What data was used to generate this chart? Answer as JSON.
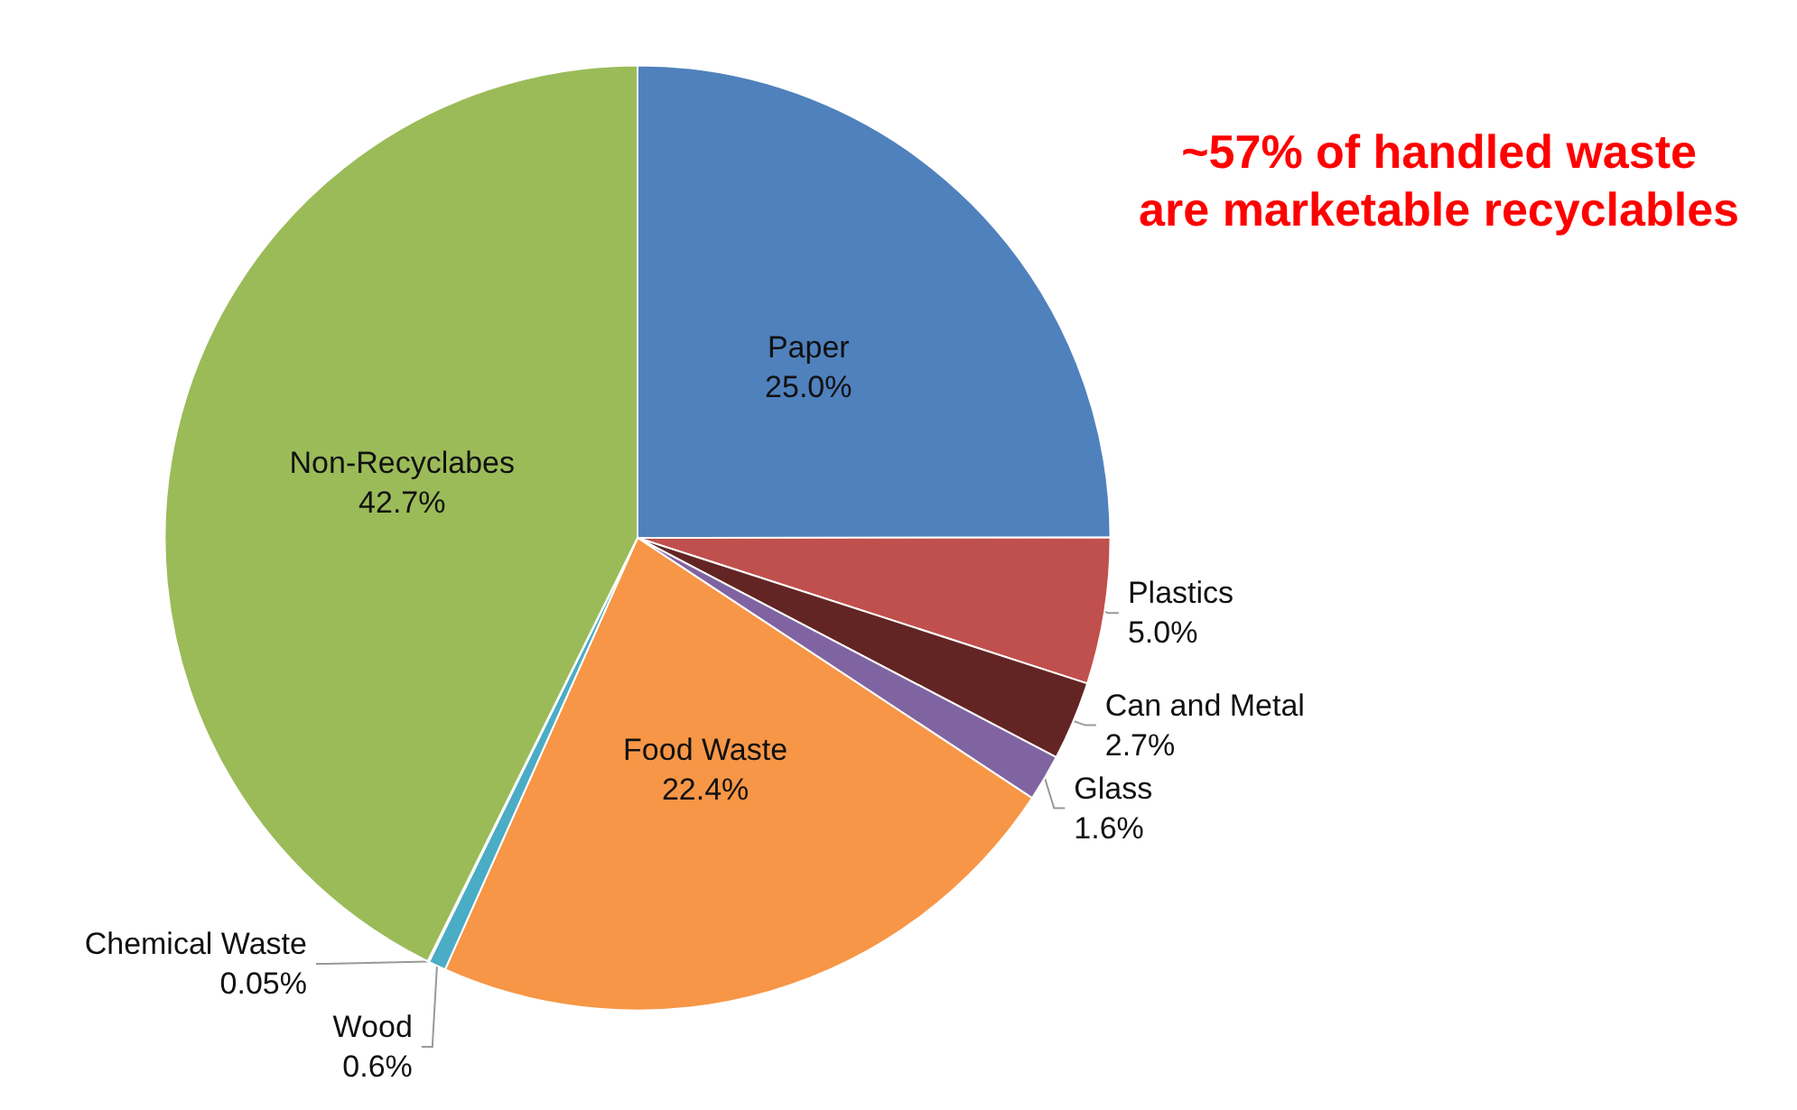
{
  "chart_data": {
    "type": "pie",
    "categories": [
      "Paper",
      "Plastics",
      "Can and Metal",
      "Glass",
      "Food Waste",
      "Wood",
      "Chemical Waste",
      "Non-Recyclabes"
    ],
    "values": [
      25.0,
      5.0,
      2.7,
      1.6,
      22.4,
      0.6,
      0.05,
      42.7
    ],
    "value_labels": [
      "25.0%",
      "5.0%",
      "2.7%",
      "1.6%",
      "22.4%",
      "0.6%",
      "0.05%",
      "42.7%"
    ],
    "colors": [
      "#4f81bd",
      "#c0504d",
      "#632523",
      "#8064a2",
      "#f79646",
      "#4bacc6",
      "#d9d9d9",
      "#9bbb59"
    ],
    "annotations": [
      "~57% of handled waste\nare marketable recyclables"
    ],
    "legend": false
  }
}
